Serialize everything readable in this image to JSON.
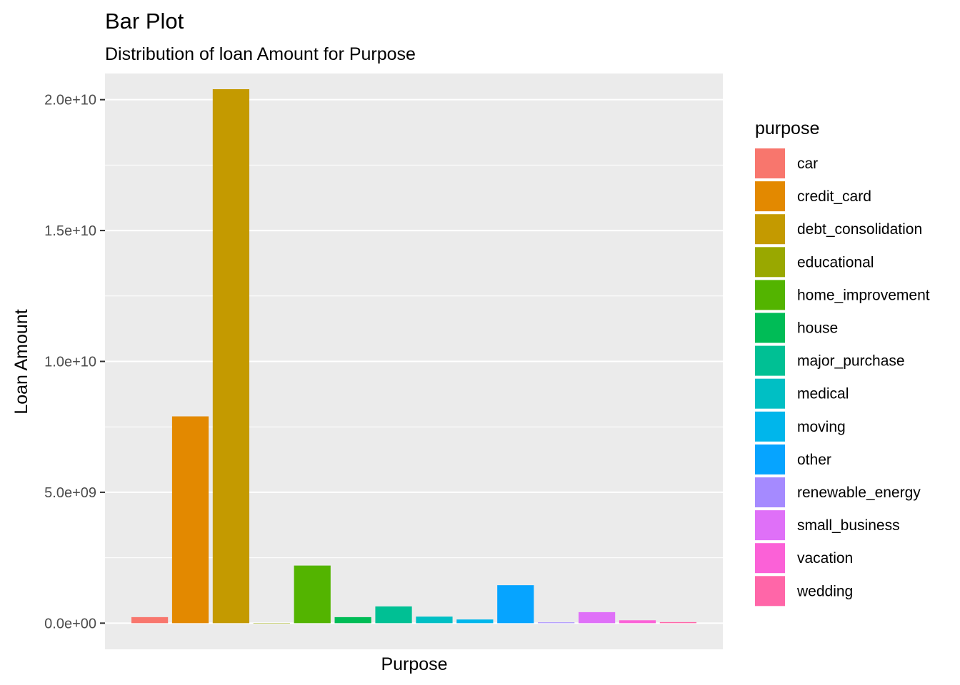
{
  "chart_data": {
    "type": "bar",
    "title": "Bar Plot",
    "subtitle": "Distribution of loan Amount for Purpose",
    "xlabel": "Purpose",
    "ylabel": "Loan Amount",
    "ylim": [
      -1000000000,
      21000000000
    ],
    "grid": true,
    "y_ticks": [
      0,
      5000000000,
      10000000000,
      15000000000,
      20000000000
    ],
    "y_tick_labels": [
      "0.0e+00",
      "5.0e+09",
      "1.0e+10",
      "1.5e+10",
      "2.0e+10"
    ],
    "x_tick_labels_shown": false,
    "categories": [
      "car",
      "credit_card",
      "debt_consolidation",
      "educational",
      "home_improvement",
      "house",
      "major_purchase",
      "medical",
      "moving",
      "other",
      "renewable_energy",
      "small_business",
      "vacation",
      "wedding"
    ],
    "values": [
      230000000,
      7900000000,
      20400000000,
      0,
      2200000000,
      230000000,
      640000000,
      250000000,
      140000000,
      1450000000,
      30000000,
      420000000,
      110000000,
      40000000
    ],
    "colors": [
      "#F8766D",
      "#E38900",
      "#C49A00",
      "#99A800",
      "#53B400",
      "#00BC56",
      "#00C094",
      "#00BFC4",
      "#00B6EB",
      "#06A4FF",
      "#A58AFF",
      "#DF70F8",
      "#FB61D7",
      "#FF66A8"
    ],
    "legend": {
      "title": "purpose",
      "placement": "right"
    },
    "panel_background": "#EBEBEB",
    "gridline_color": "#FFFFFF"
  }
}
